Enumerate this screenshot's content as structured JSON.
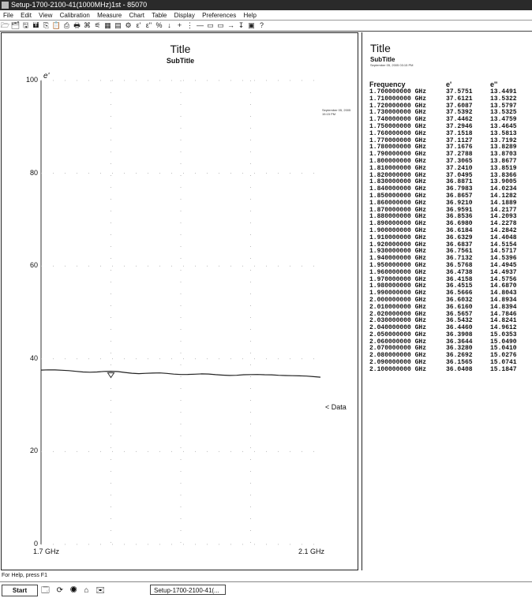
{
  "window": {
    "title": "Setup-1700-2100-41(1000MHz)1st - 85070"
  },
  "menu": [
    "File",
    "Edit",
    "View",
    "Calibration",
    "Measure",
    "Chart",
    "Table",
    "Display",
    "Preferences",
    "Help"
  ],
  "toolbar": {
    "icons": [
      "open-icon",
      "open-folder-icon",
      "save-icon",
      "save-as-icon",
      "copy-icon",
      "paste-icon",
      "print-icon",
      "print-preview-icon",
      "measure-icon",
      "calibrate-icon",
      "chart-icon",
      "table-icon",
      "options-icon",
      "e-prime-icon",
      "e-double-prime-icon",
      "loss-tangent-icon",
      "arrow-icon",
      "plus-icon",
      "cursor-icon",
      "minus-icon",
      "scale-icon",
      "autoscale-icon",
      "marker-right-icon",
      "marker-down-icon",
      "help-book-icon",
      "help-icon"
    ],
    "glyphs": [
      "🗁",
      "🗂",
      "🖫",
      "🖬",
      "⎘",
      "📋",
      "⎙",
      "🖶",
      "⌘",
      "⚟",
      "▦",
      "▤",
      "⚙",
      "ε'",
      "ε\"",
      "%",
      "↓",
      "+",
      "⋮",
      "—",
      "▭",
      "▭",
      "→",
      "↧",
      "▣",
      "?"
    ]
  },
  "chart": {
    "title": "Title",
    "subtitle": "SubTitle",
    "date": "September 05, 2005 15:15 PM",
    "y_axis_label": "e'",
    "data_label": "< Data"
  },
  "chart_data": {
    "type": "line",
    "title": "Title",
    "subtitle": "SubTitle",
    "ylabel": "e'",
    "xlabel": "",
    "xlim": [
      1.7,
      2.1
    ],
    "ylim": [
      0,
      100
    ],
    "y_ticks": [
      "100",
      "80",
      "60",
      "40",
      "20",
      "0"
    ],
    "x_ticks": [
      "1.7 GHz",
      "2.1 GHz"
    ],
    "series": [
      {
        "name": "Data",
        "x": [
          1.7,
          1.71,
          1.72,
          1.73,
          1.74,
          1.75,
          1.76,
          1.77,
          1.78,
          1.79,
          1.8,
          1.81,
          1.82,
          1.83,
          1.84,
          1.85,
          1.86,
          1.87,
          1.88,
          1.89,
          1.9,
          1.91,
          1.92,
          1.93,
          1.94,
          1.95,
          1.96,
          1.97,
          1.98,
          1.99,
          2.0,
          2.01,
          2.02,
          2.03,
          2.04,
          2.05,
          2.06,
          2.07,
          2.08,
          2.09,
          2.1
        ],
        "values": [
          37.5751,
          37.6121,
          37.6087,
          37.5392,
          37.4462,
          37.2946,
          37.1518,
          37.1127,
          37.1676,
          37.2788,
          37.3065,
          37.241,
          37.0495,
          36.8871,
          36.7983,
          36.8657,
          36.921,
          36.9591,
          36.8536,
          36.698,
          36.6184,
          36.6329,
          36.6837,
          36.7561,
          36.7132,
          36.5768,
          36.4738,
          36.4158,
          36.4515,
          36.5666,
          36.6032,
          36.616,
          36.5657,
          36.5432,
          36.446,
          36.3908,
          36.3644,
          36.328,
          36.2692,
          36.1565,
          36.0408
        ]
      }
    ],
    "grid": true,
    "legend": "right"
  },
  "table": {
    "title": "Title",
    "subtitle": "SubTitle",
    "date": "September 05, 2005 03:15 PM",
    "headers": [
      "Frequency",
      "e'",
      "e''"
    ],
    "rows": [
      [
        "1.700000000 GHz",
        "37.5751",
        "13.4491"
      ],
      [
        "1.710000000 GHz",
        "37.6121",
        "13.5322"
      ],
      [
        "1.720000000 GHz",
        "37.6087",
        "13.5797"
      ],
      [
        "1.730000000 GHz",
        "37.5392",
        "13.5325"
      ],
      [
        "1.740000000 GHz",
        "37.4462",
        "13.4759"
      ],
      [
        "1.750000000 GHz",
        "37.2946",
        "13.4645"
      ],
      [
        "1.760000000 GHz",
        "37.1518",
        "13.5813"
      ],
      [
        "1.770000000 GHz",
        "37.1127",
        "13.7192"
      ],
      [
        "1.780000000 GHz",
        "37.1676",
        "13.8289"
      ],
      [
        "1.790000000 GHz",
        "37.2788",
        "13.8703"
      ],
      [
        "1.800000000 GHz",
        "37.3065",
        "13.8677"
      ],
      [
        "1.810000000 GHz",
        "37.2410",
        "13.8519"
      ],
      [
        "1.820000000 GHz",
        "37.0495",
        "13.8366"
      ],
      [
        "1.830000000 GHz",
        "36.8871",
        "13.9005"
      ],
      [
        "1.840000000 GHz",
        "36.7983",
        "14.0234"
      ],
      [
        "1.850000000 GHz",
        "36.8657",
        "14.1282"
      ],
      [
        "1.860000000 GHz",
        "36.9210",
        "14.1889"
      ],
      [
        "1.870000000 GHz",
        "36.9591",
        "14.2177"
      ],
      [
        "1.880000000 GHz",
        "36.8536",
        "14.2093"
      ],
      [
        "1.890000000 GHz",
        "36.6980",
        "14.2278"
      ],
      [
        "1.900000000 GHz",
        "36.6184",
        "14.2842"
      ],
      [
        "1.910000000 GHz",
        "36.6329",
        "14.4048"
      ],
      [
        "1.920000000 GHz",
        "36.6837",
        "14.5154"
      ],
      [
        "1.930000000 GHz",
        "36.7561",
        "14.5717"
      ],
      [
        "1.940000000 GHz",
        "36.7132",
        "14.5396"
      ],
      [
        "1.950000000 GHz",
        "36.5768",
        "14.4945"
      ],
      [
        "1.960000000 GHz",
        "36.4738",
        "14.4937"
      ],
      [
        "1.970000000 GHz",
        "36.4158",
        "14.5756"
      ],
      [
        "1.980000000 GHz",
        "36.4515",
        "14.6870"
      ],
      [
        "1.990000000 GHz",
        "36.5666",
        "14.8043"
      ],
      [
        "2.000000000 GHz",
        "36.6032",
        "14.8934"
      ],
      [
        "2.010000000 GHz",
        "36.6160",
        "14.8394"
      ],
      [
        "2.020000000 GHz",
        "36.5657",
        "14.7846"
      ],
      [
        "2.030000000 GHz",
        "36.5432",
        "14.8241"
      ],
      [
        "2.040000000 GHz",
        "36.4460",
        "14.9612"
      ],
      [
        "2.050000000 GHz",
        "36.3908",
        "15.0353"
      ],
      [
        "2.060000000 GHz",
        "36.3644",
        "15.0490"
      ],
      [
        "2.070000000 GHz",
        "36.3280",
        "15.0410"
      ],
      [
        "2.080000000 GHz",
        "36.2692",
        "15.0276"
      ],
      [
        "2.090000000 GHz",
        "36.1565",
        "15.0741"
      ],
      [
        "2.100000000 GHz",
        "36.0408",
        "15.1847"
      ]
    ]
  },
  "status": {
    "text": "For Help, press F1"
  },
  "taskbar": {
    "start": "Start",
    "quick": "🗔 ⟳ ◉ ⌂ ✉",
    "task": "Setup-1700-2100-41(..."
  }
}
